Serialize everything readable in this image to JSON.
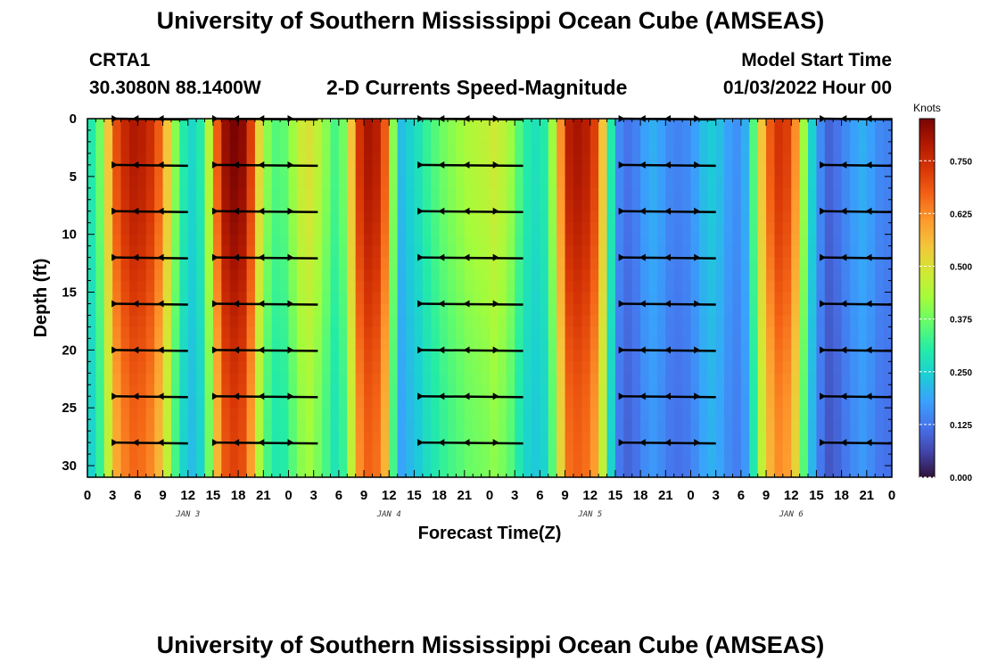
{
  "header": {
    "title_top": "University of Southern Mississippi Ocean Cube (AMSEAS)",
    "station": "CRTA1",
    "coords": "30.3080N  88.1400W",
    "subtitle": "2-D Currents Speed-Magnitude",
    "model_start_label": "Model Start Time",
    "model_start_value": "01/03/2022 Hour 00",
    "title_bottom": "University of Southern Mississippi Ocean Cube (AMSEAS)"
  },
  "chart_data": {
    "type": "heatmap",
    "title": "2-D Currents Speed-Magnitude",
    "xlabel": "Forecast Time(Z)",
    "ylabel": "Depth (ft)",
    "x_unit": "hours since 01/03/2022 00Z",
    "xlim": [
      0,
      96
    ],
    "ylim": [
      31,
      0
    ],
    "x_tick_labels": [
      "0",
      "3",
      "6",
      "9",
      "12",
      "15",
      "18",
      "21",
      "0",
      "3",
      "6",
      "9",
      "12",
      "15",
      "18",
      "21",
      "0",
      "3",
      "6",
      "9",
      "12",
      "15",
      "18",
      "21",
      "0",
      "3",
      "6",
      "9",
      "12",
      "15",
      "18",
      "21",
      "0"
    ],
    "x_date_labels": [
      {
        "label": "JAN 3",
        "at_hour": 12
      },
      {
        "label": "JAN 4",
        "at_hour": 36
      },
      {
        "label": "JAN 5",
        "at_hour": 60
      },
      {
        "label": "JAN 6",
        "at_hour": 84
      }
    ],
    "y_ticks": [
      0,
      5,
      10,
      15,
      20,
      25,
      30
    ],
    "colorbar": {
      "label": "Knots",
      "min": 0.0,
      "max": 0.85,
      "tick_labels": [
        "0.000",
        "0.125",
        "0.250",
        "0.375",
        "0.500",
        "0.625",
        "0.750"
      ],
      "colors": [
        "#30123b",
        "#4145ab",
        "#4675ed",
        "#39a2fc",
        "#1bcfd4",
        "#24eca6",
        "#61fc6c",
        "#a4fc3b",
        "#d1e834",
        "#f3c63a",
        "#fe9b2d",
        "#f36315",
        "#d93806",
        "#b11901",
        "#7a0403"
      ]
    },
    "speed_profile": {
      "time_hours": [
        0,
        1,
        2,
        3,
        4,
        5,
        6,
        7,
        8,
        9,
        10,
        11,
        12,
        13,
        14,
        15,
        16,
        17,
        18,
        19,
        20,
        21,
        22,
        23,
        24,
        25,
        26,
        27,
        28,
        29,
        30,
        31,
        32,
        33,
        34,
        35,
        36,
        37,
        38,
        39,
        40,
        41,
        42,
        43,
        44,
        45,
        46,
        47,
        48,
        49,
        50,
        51,
        52,
        53,
        54,
        55,
        56,
        57,
        58,
        59,
        60,
        61,
        62,
        63,
        64,
        65,
        66,
        67,
        68,
        69,
        70,
        71,
        72,
        73,
        74,
        75,
        76,
        77,
        78,
        79,
        80,
        81,
        82,
        83,
        84,
        85,
        86,
        87,
        88,
        89,
        90,
        91,
        92,
        93,
        94,
        95,
        96
      ],
      "speed_knots": [
        0.3,
        0.38,
        0.55,
        0.7,
        0.76,
        0.79,
        0.78,
        0.75,
        0.68,
        0.55,
        0.4,
        0.3,
        0.26,
        0.3,
        0.45,
        0.68,
        0.82,
        0.85,
        0.83,
        0.72,
        0.52,
        0.4,
        0.35,
        0.36,
        0.42,
        0.48,
        0.5,
        0.46,
        0.4,
        0.34,
        0.38,
        0.55,
        0.74,
        0.8,
        0.78,
        0.68,
        0.4,
        0.22,
        0.25,
        0.28,
        0.32,
        0.35,
        0.38,
        0.4,
        0.42,
        0.44,
        0.45,
        0.46,
        0.48,
        0.46,
        0.42,
        0.35,
        0.3,
        0.28,
        0.3,
        0.42,
        0.62,
        0.78,
        0.8,
        0.78,
        0.72,
        0.55,
        0.3,
        0.15,
        0.12,
        0.14,
        0.18,
        0.2,
        0.18,
        0.15,
        0.14,
        0.15,
        0.18,
        0.22,
        0.24,
        0.22,
        0.18,
        0.16,
        0.2,
        0.35,
        0.55,
        0.68,
        0.74,
        0.72,
        0.62,
        0.42,
        0.25,
        0.15,
        0.1,
        0.12,
        0.15,
        0.18,
        0.2,
        0.18,
        0.15,
        0.14,
        0.14
      ]
    },
    "arrow_depths_ft": [
      0,
      4,
      8,
      12,
      16,
      20,
      24,
      28
    ]
  }
}
